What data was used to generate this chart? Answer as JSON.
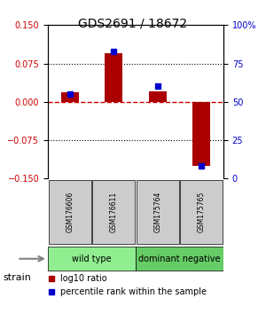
{
  "title": "GDS2691 / 18672",
  "samples": [
    "GSM176606",
    "GSM176611",
    "GSM175764",
    "GSM175765"
  ],
  "log10_ratio": [
    0.018,
    0.095,
    0.02,
    -0.125
  ],
  "percentile_rank": [
    55,
    83,
    60,
    8
  ],
  "groups": [
    {
      "label": "wild type",
      "samples": [
        0,
        1
      ],
      "color": "#90ee90"
    },
    {
      "label": "dominant negative",
      "samples": [
        2,
        3
      ],
      "color": "#66cc66"
    }
  ],
  "ylim": [
    -0.15,
    0.15
  ],
  "yticks_left": [
    -0.15,
    -0.075,
    0,
    0.075,
    0.15
  ],
  "yticks_right": [
    0,
    25,
    50,
    75,
    100
  ],
  "bar_color": "#aa0000",
  "dot_color": "#0000cc",
  "hline_color": "#cc0000",
  "grid_color": "#000000",
  "label_color_left": "#cc0000",
  "label_color_right": "#0000cc",
  "sample_box_color": "#cccccc",
  "strain_label": "strain",
  "legend_bar": "log10 ratio",
  "legend_dot": "percentile rank within the sample"
}
